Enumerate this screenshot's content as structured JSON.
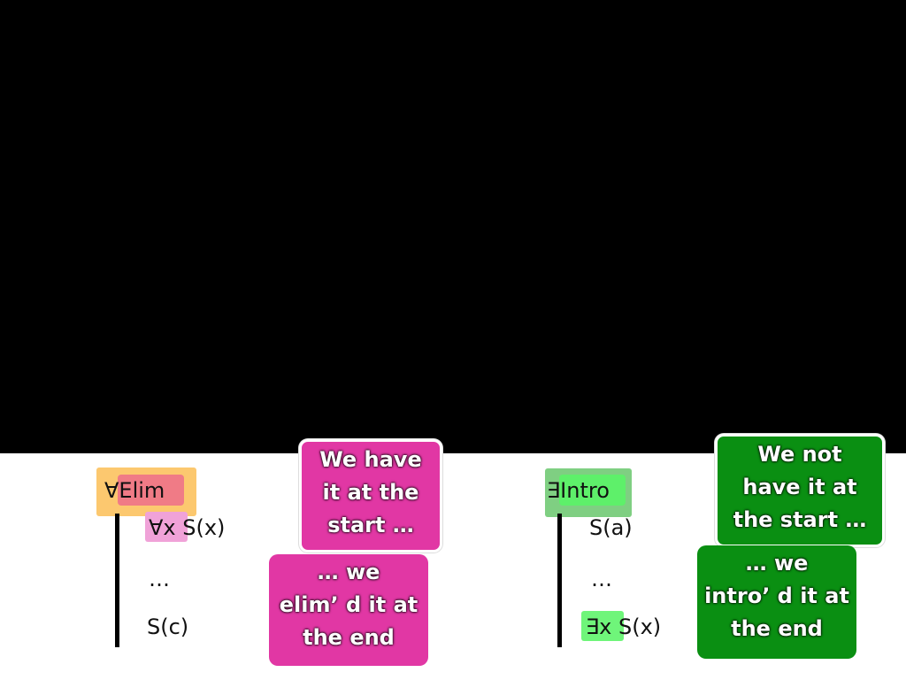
{
  "left": {
    "rule_name": "∀Elim",
    "colors": {
      "rule_box": "#fcc86f",
      "rule_inner": "#f07b86",
      "highlight": "#f0a2d8",
      "callout": "#e137a4"
    },
    "lines": {
      "line1_quant": "∀x",
      "line1_rest": " S(x)",
      "line2": "…",
      "line3": "S(c)"
    },
    "callouts": {
      "top": [
        "We have",
        "it at the",
        "start …"
      ],
      "bottom": [
        "… we",
        "elim’ d it at",
        "the end"
      ]
    }
  },
  "right": {
    "rule_name": "∃Intro",
    "colors": {
      "rule_box": "#7fcf82",
      "rule_inner": "#5ef06a",
      "highlight": "#6ff57a",
      "callout": "#0a8f12"
    },
    "lines": {
      "line1": "S(a)",
      "line2": "…",
      "line3_quant": "∃x",
      "line3_rest": " S(x)"
    },
    "callouts": {
      "top": [
        "We not",
        "have it at",
        "the start …"
      ],
      "bottom": [
        "… we",
        "intro’ d it at",
        "the end"
      ]
    }
  }
}
